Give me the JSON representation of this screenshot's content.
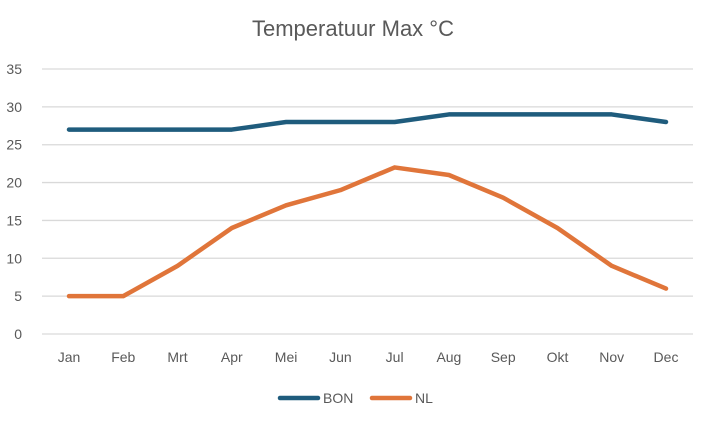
{
  "chart_data": {
    "type": "line",
    "title": "Temperatuur Max °C",
    "xlabel": "",
    "ylabel": "",
    "categories": [
      "Jan",
      "Feb",
      "Mrt",
      "Apr",
      "Mei",
      "Jun",
      "Jul",
      "Aug",
      "Sep",
      "Okt",
      "Nov",
      "Dec"
    ],
    "ylim": [
      0,
      35
    ],
    "yticks": [
      0,
      5,
      10,
      15,
      20,
      25,
      30,
      35
    ],
    "grid": true,
    "legend": "bottom",
    "series": [
      {
        "name": "BON",
        "color": "#1f5c7d",
        "values": [
          27,
          27,
          27,
          27,
          28,
          28,
          28,
          29,
          29,
          29,
          29,
          28
        ]
      },
      {
        "name": "NL",
        "color": "#e0753a",
        "values": [
          5,
          5,
          9,
          14,
          17,
          19,
          22,
          21,
          18,
          14,
          9,
          6
        ]
      }
    ]
  }
}
